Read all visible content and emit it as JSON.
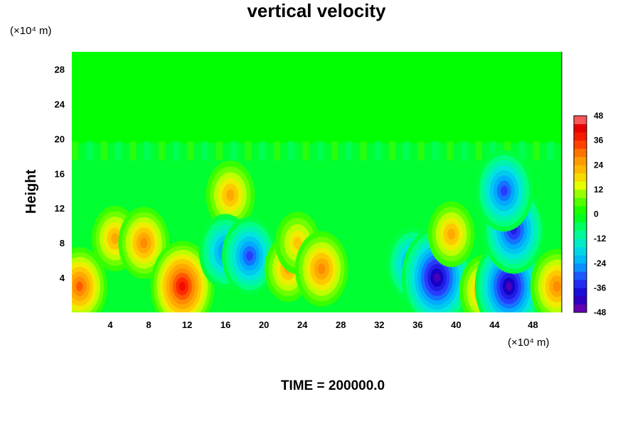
{
  "chart_data": {
    "type": "heatmap",
    "title": "vertical velocity",
    "ylabel": "Height",
    "xlabel": "",
    "y_unit": "(×10⁴ m)",
    "x_unit": "(×10⁴ m)",
    "footer": "TIME = 200000.0",
    "xlim": [
      0,
      51
    ],
    "ylim": [
      0,
      30
    ],
    "x_ticks": [
      4,
      8,
      12,
      16,
      20,
      24,
      28,
      32,
      36,
      40,
      44,
      48
    ],
    "y_ticks": [
      4,
      8,
      12,
      16,
      20,
      24,
      28
    ],
    "colorbar": {
      "range": [
        -48,
        48
      ],
      "ticks": [
        48,
        36,
        24,
        12,
        0,
        -12,
        -24,
        -36,
        -48
      ],
      "step": 4
    },
    "features": [
      {
        "x": 0.8,
        "y": 3.0,
        "value": 32
      },
      {
        "x": 4.5,
        "y": 8.5,
        "value": 24
      },
      {
        "x": 7.5,
        "y": 8.0,
        "value": 28
      },
      {
        "x": 11.5,
        "y": 3.0,
        "value": 40
      },
      {
        "x": 16.5,
        "y": 13.5,
        "value": 26
      },
      {
        "x": 16.0,
        "y": 7.0,
        "value": -30
      },
      {
        "x": 18.5,
        "y": 6.5,
        "value": -32
      },
      {
        "x": 22.5,
        "y": 5.0,
        "value": 24
      },
      {
        "x": 23.5,
        "y": 8.0,
        "value": 22
      },
      {
        "x": 26.0,
        "y": 5.0,
        "value": 30
      },
      {
        "x": 35.5,
        "y": 5.5,
        "value": -30
      },
      {
        "x": 38.0,
        "y": 4.0,
        "value": -46
      },
      {
        "x": 39.5,
        "y": 9.0,
        "value": 24
      },
      {
        "x": 43.0,
        "y": 2.5,
        "value": 28
      },
      {
        "x": 45.5,
        "y": 3.0,
        "value": -44
      },
      {
        "x": 46.0,
        "y": 9.5,
        "value": -38
      },
      {
        "x": 45.0,
        "y": 14.0,
        "value": -34
      },
      {
        "x": 50.5,
        "y": 3.0,
        "value": 30
      }
    ]
  }
}
